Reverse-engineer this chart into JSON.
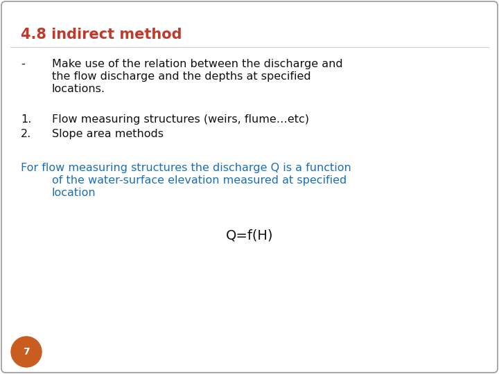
{
  "title": "4.8 indirect method",
  "title_color": "#c0392b",
  "title_fontsize": 15,
  "bg_color": "#ffffff",
  "border_color": "#999999",
  "bullet_dash": "-",
  "bullet_text_line1": "Make use of the relation between the discharge and",
  "bullet_text_line2": "the flow discharge and the depths at specified",
  "bullet_text_line3": "locations.",
  "bullet_text_color": "#111111",
  "bullet_fontsize": 11.5,
  "numbered_items": [
    "Flow measuring structures (weirs, flume…etc)",
    "Slope area methods"
  ],
  "numbered_color": "#111111",
  "numbered_fontsize": 11.5,
  "blue_text_line1": "For flow measuring structures the discharge Q is a function",
  "blue_text_line2": "of the water-surface elevation measured at specified",
  "blue_text_line3": "location",
  "blue_text_color": "#1a6fbb",
  "blue_text_fontsize": 11.5,
  "formula": "Q=f(H)",
  "formula_color": "#111111",
  "formula_fontsize": 14,
  "page_number": "7",
  "page_circle_color": "#c95c20",
  "page_text_color": "#ffffff",
  "page_fontsize": 10
}
